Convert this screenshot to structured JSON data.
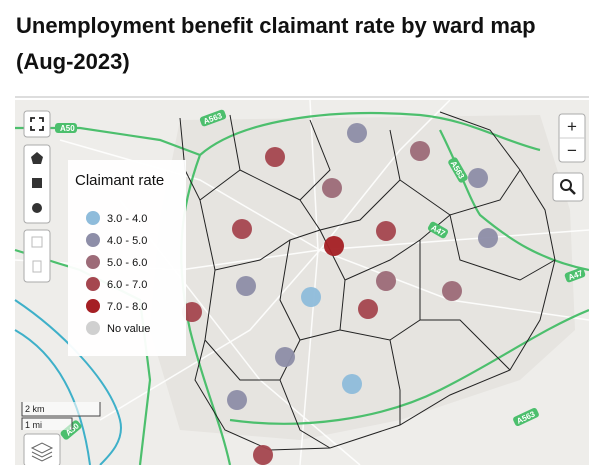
{
  "header": {
    "title": "Unemployment benefit claimant rate by ward map (Aug-2023)"
  },
  "map": {
    "legend": {
      "title": "Claimant rate",
      "items": [
        "3.0 - 4.0",
        "4.0 - 5.0",
        "5.0 - 6.0",
        "6.0 - 7.0",
        "7.0 - 8.0",
        "No value"
      ]
    },
    "road_labels": [
      "A50",
      "A563",
      "A563",
      "A47",
      "A47",
      "A563",
      "A50"
    ],
    "scale": [
      "2 km",
      "1 mi"
    ],
    "zoom": [
      "+",
      "−"
    ]
  }
}
